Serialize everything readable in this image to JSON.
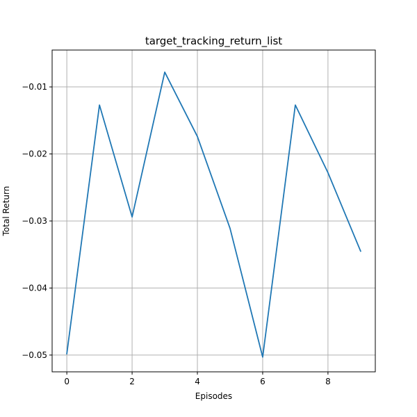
{
  "chart_data": {
    "type": "line",
    "title": "target_tracking_return_list",
    "xlabel": "Episodes",
    "ylabel": "Total Return",
    "xlim": [
      -0.45,
      9.45
    ],
    "ylim": [
      -0.0525,
      -0.0045
    ],
    "grid": true,
    "x_ticks": [
      0,
      2,
      4,
      6,
      8
    ],
    "x_tick_labels": [
      "0",
      "2",
      "4",
      "6",
      "8"
    ],
    "y_ticks": [
      -0.05,
      -0.04,
      -0.03,
      -0.02,
      -0.01
    ],
    "y_tick_labels": [
      "−0.05",
      "−0.04",
      "−0.03",
      "−0.02",
      "−0.01"
    ],
    "series_color": "#1f77b4",
    "series": [
      {
        "x": [
          0,
          1,
          2,
          3,
          4,
          5,
          6,
          7,
          8,
          9
        ],
        "values": [
          -0.0498,
          -0.0127,
          -0.0294,
          -0.0078,
          -0.0174,
          -0.0311,
          -0.0503,
          -0.0127,
          -0.0228,
          -0.0345
        ]
      }
    ]
  }
}
